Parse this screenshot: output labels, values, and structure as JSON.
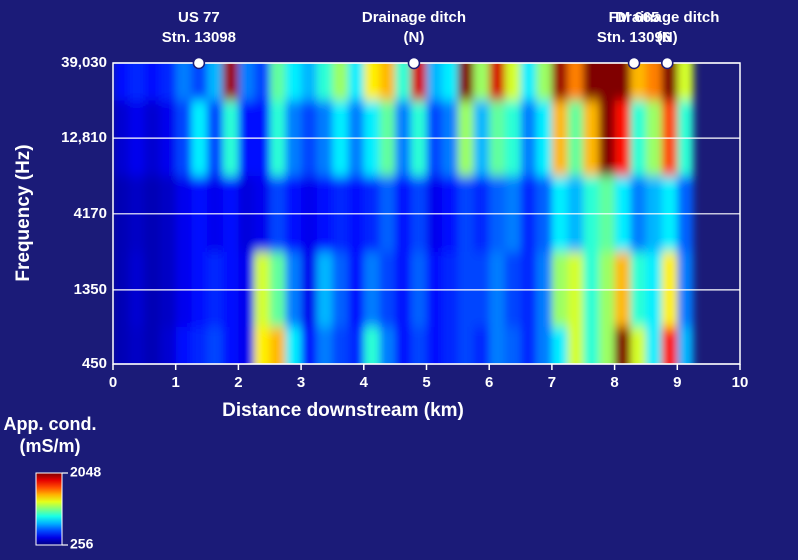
{
  "chart_data": {
    "type": "heatmap",
    "xlabel": "Distance downstream (km)",
    "ylabel": "Frequency (Hz)",
    "xlim": [
      0,
      10
    ],
    "xticks": [
      0,
      1,
      2,
      3,
      4,
      5,
      6,
      7,
      8,
      9,
      10
    ],
    "ylim": [
      450,
      39030
    ],
    "log_y": true,
    "yticks": [
      {
        "value": 450,
        "label": "450"
      },
      {
        "value": 1350,
        "label": "1350"
      },
      {
        "value": 4170,
        "label": "4170"
      },
      {
        "value": 12810,
        "label": "12,810"
      },
      {
        "value": 39030,
        "label": "39,030"
      }
    ],
    "grid": true,
    "x": [
      0.125,
      0.375,
      0.625,
      0.875,
      1.125,
      1.375,
      1.625,
      1.875,
      2.125,
      2.375,
      2.625,
      2.875,
      3.125,
      3.375,
      3.625,
      3.875,
      4.125,
      4.375,
      4.625,
      4.875,
      5.125,
      5.375,
      5.625,
      5.875,
      6.125,
      6.375,
      6.625,
      6.875,
      7.125,
      7.375,
      7.625,
      7.875,
      8.125,
      8.375,
      8.625,
      8.875,
      9.125
    ],
    "y": [
      39030,
      12810,
      4170,
      1350,
      450
    ],
    "z": [
      [
        500,
        550,
        500,
        550,
        700,
        600,
        800,
        2000,
        700,
        600,
        1100,
        900,
        800,
        1000,
        1200,
        900,
        1400,
        1500,
        1000,
        1900,
        800,
        900,
        2048,
        1200,
        1900,
        1300,
        900,
        1200,
        2000,
        1600,
        2048,
        2048,
        2048,
        1500,
        1600,
        2048,
        1300
      ],
      [
        400,
        450,
        400,
        450,
        600,
        900,
        600,
        1000,
        500,
        500,
        1000,
        700,
        600,
        700,
        900,
        700,
        900,
        1100,
        700,
        1000,
        600,
        700,
        1200,
        800,
        1100,
        1000,
        700,
        900,
        1500,
        1100,
        1500,
        2048,
        1800,
        1000,
        1200,
        1700,
        1000
      ],
      [
        350,
        380,
        350,
        380,
        450,
        500,
        450,
        500,
        420,
        450,
        600,
        500,
        450,
        500,
        550,
        500,
        550,
        650,
        500,
        600,
        450,
        500,
        600,
        550,
        650,
        700,
        550,
        650,
        900,
        800,
        1000,
        1100,
        900,
        700,
        800,
        900,
        650
      ],
      [
        350,
        400,
        350,
        380,
        450,
        500,
        550,
        500,
        450,
        1300,
        1100,
        700,
        450,
        800,
        650,
        500,
        700,
        600,
        500,
        650,
        500,
        550,
        600,
        600,
        700,
        600,
        550,
        700,
        1200,
        1300,
        1000,
        1200,
        1500,
        1000,
        900,
        1400,
        700
      ],
      [
        350,
        380,
        350,
        400,
        500,
        550,
        600,
        500,
        450,
        1400,
        1500,
        900,
        500,
        700,
        600,
        550,
        1000,
        700,
        500,
        600,
        500,
        550,
        600,
        550,
        700,
        650,
        550,
        700,
        900,
        1300,
        1000,
        1200,
        2048,
        1300,
        900,
        1800,
        800
      ]
    ],
    "clim": [
      256,
      2048
    ],
    "colorbar_title": [
      "App. cond.",
      "(mS/m)"
    ],
    "annotations": [
      {
        "x": 1.37,
        "lines": [
          "US 77",
          "Stn. 13098"
        ]
      },
      {
        "x": 4.8,
        "lines": [
          "Drainage ditch",
          "(N)"
        ]
      },
      {
        "x": 8.31,
        "lines": [
          "FM 665",
          "Stn. 13096"
        ]
      },
      {
        "x": 8.84,
        "lines": [
          "Drainage ditch",
          "(N)"
        ]
      }
    ]
  }
}
